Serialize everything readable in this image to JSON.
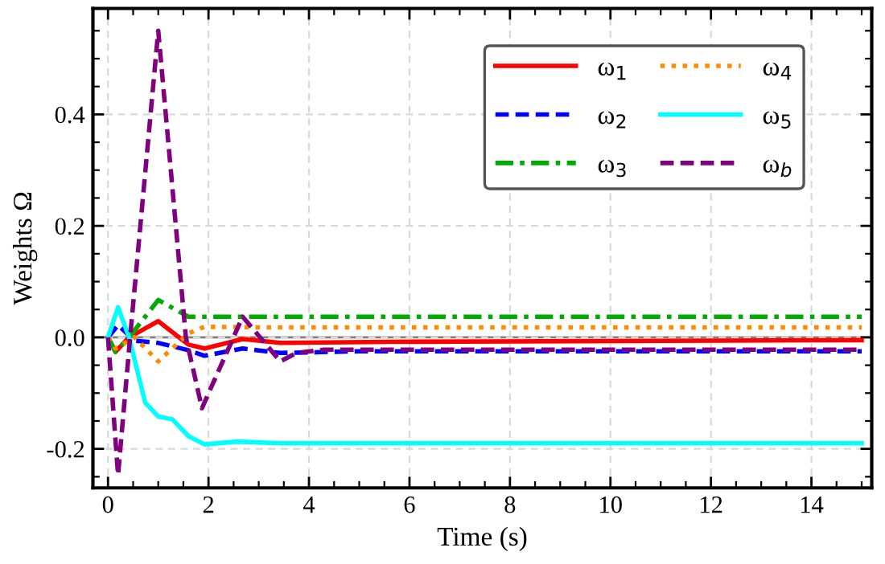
{
  "chart_data": {
    "type": "line",
    "xlabel": "Time (s)",
    "ylabel": "Weights Ω",
    "xlim": [
      -0.3,
      15.2
    ],
    "ylim": [
      -0.27,
      0.59
    ],
    "xticks": [
      0,
      2,
      4,
      6,
      8,
      10,
      12,
      14
    ],
    "yticks": [
      {
        "value": -0.2,
        "label": "-0.2"
      },
      {
        "value": 0,
        "label": "0.0"
      },
      {
        "value": 0.2,
        "label": "0.2"
      },
      {
        "value": 0.4,
        "label": "0.4"
      }
    ],
    "grid": true,
    "legend": "top right",
    "marker": "none",
    "ref_lines": [
      {
        "axis": "y",
        "value": 0,
        "color": "#808080",
        "line_style": "solid"
      }
    ],
    "series": [
      {
        "name": "ω$_{1}$",
        "color": "#ff0000",
        "line_style": "solid",
        "x": [
          0,
          0.15,
          0.42,
          1.0,
          1.6,
          1.92,
          2.68,
          3.43,
          5.6,
          15
        ],
        "values": [
          0,
          -0.026,
          0,
          0.029,
          -0.013,
          -0.02,
          -0.003,
          -0.01,
          -0.008,
          -0.005
        ]
      },
      {
        "name": "ω$_{2}$",
        "color": "#0000ff",
        "line_style": "dashed",
        "x": [
          0,
          0.2,
          0.53,
          1.0,
          1.6,
          1.92,
          2.68,
          3.43,
          5,
          15
        ],
        "values": [
          0,
          0.022,
          -0.006,
          -0.01,
          -0.023,
          -0.033,
          -0.02,
          -0.028,
          -0.025,
          -0.025
        ]
      },
      {
        "name": "ω$_{3}$",
        "color": "#00aa00",
        "line_style": "dashdot",
        "x": [
          0,
          0.15,
          0.42,
          1.0,
          1.6,
          2.5,
          15
        ],
        "values": [
          0,
          -0.026,
          0,
          0.067,
          0.037,
          0.037,
          0.037
        ]
      },
      {
        "name": "ω$_{4}$",
        "color": "#ff8c00",
        "line_style": "dotted",
        "x": [
          0,
          0.15,
          0.53,
          1.0,
          1.6,
          1.92,
          3,
          15
        ],
        "values": [
          0,
          -0.02,
          0,
          -0.043,
          0.007,
          0.019,
          0.018,
          0.018
        ]
      },
      {
        "name": "ω$_{5}$",
        "color": "#00ffff",
        "line_style": "solid",
        "x": [
          0,
          0.2,
          0.42,
          0.74,
          1.0,
          1.28,
          1.6,
          1.92,
          2.57,
          3.43,
          15
        ],
        "values": [
          0,
          0.054,
          0,
          -0.117,
          -0.142,
          -0.147,
          -0.177,
          -0.192,
          -0.187,
          -0.19,
          -0.19
        ]
      },
      {
        "name": "ω$_{b}$",
        "color": "#800080",
        "line_style": "dashed",
        "x": [
          0,
          0.2,
          0.44,
          1.0,
          1.55,
          1.87,
          2.68,
          3.43,
          3.75,
          4.3,
          15
        ],
        "values": [
          0,
          -0.247,
          0,
          0.55,
          0,
          -0.127,
          0.037,
          -0.043,
          -0.028,
          -0.022,
          -0.022
        ]
      }
    ]
  }
}
